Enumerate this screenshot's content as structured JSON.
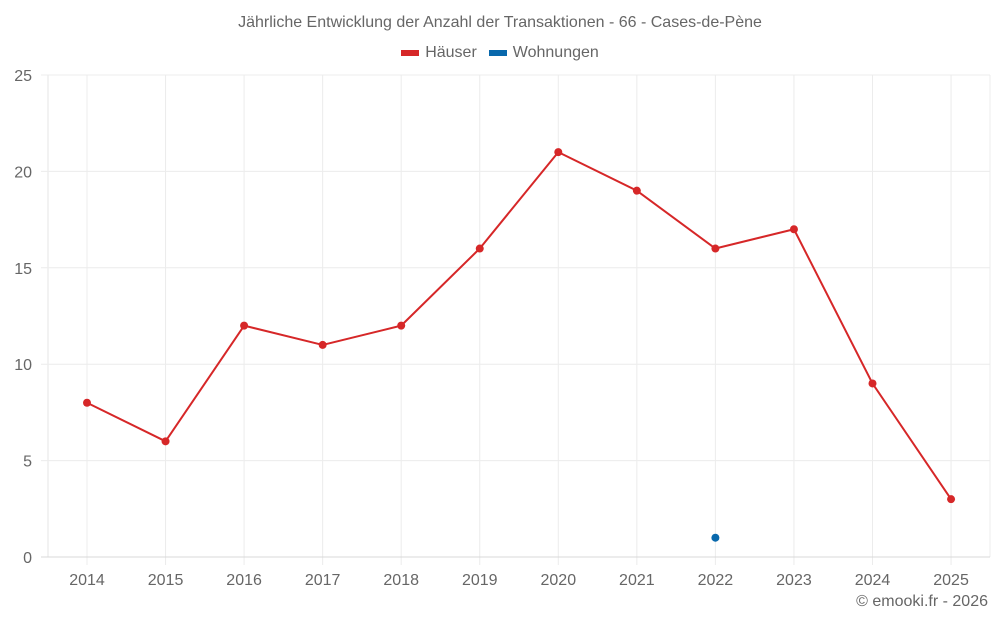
{
  "chart_data": {
    "type": "line",
    "title": "Jährliche Entwicklung der Anzahl der Transaktionen - 66 - Cases-de-Pène",
    "xlabel": "",
    "ylabel": "",
    "x": [
      "2014",
      "2015",
      "2016",
      "2017",
      "2018",
      "2019",
      "2020",
      "2021",
      "2022",
      "2023",
      "2024",
      "2025"
    ],
    "series": [
      {
        "name": "Häuser",
        "color": "#d62728",
        "values": [
          8,
          6,
          12,
          11,
          12,
          16,
          21,
          19,
          16,
          17,
          9,
          3
        ]
      },
      {
        "name": "Wohnungen",
        "color": "#0868ac",
        "values": [
          null,
          null,
          null,
          null,
          null,
          null,
          null,
          null,
          1,
          null,
          null,
          null
        ]
      }
    ],
    "ylim": [
      0,
      25
    ],
    "yticks": [
      0,
      5,
      10,
      15,
      20,
      25
    ],
    "grid": true,
    "legend_position": "top"
  },
  "legend": {
    "items": [
      {
        "label": "Häuser",
        "color": "#d62728"
      },
      {
        "label": "Wohnungen",
        "color": "#0868ac"
      }
    ]
  },
  "credit": "© emooki.fr - 2026"
}
